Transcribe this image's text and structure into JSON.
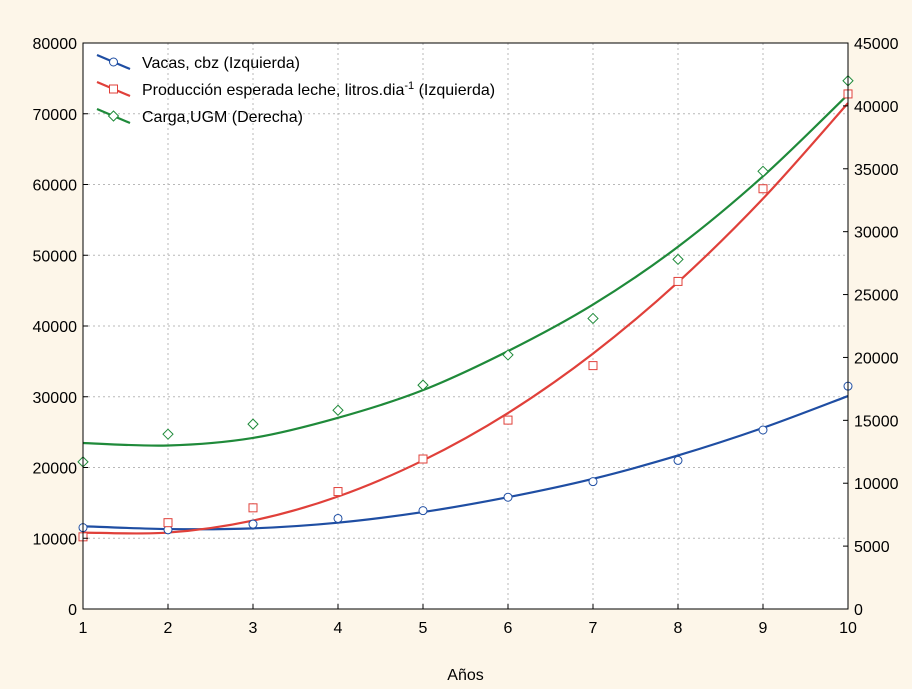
{
  "chart_data": {
    "type": "line",
    "xlabel": "Años",
    "x": [
      1,
      2,
      3,
      4,
      5,
      6,
      7,
      8,
      9,
      10
    ],
    "y_left": {
      "min": 0,
      "max": 80000,
      "ticks": [
        0,
        10000,
        20000,
        30000,
        40000,
        50000,
        60000,
        70000,
        80000
      ]
    },
    "y_right": {
      "min": 0,
      "max": 45000,
      "ticks": [
        0,
        5000,
        10000,
        15000,
        20000,
        25000,
        30000,
        35000,
        40000,
        45000
      ]
    },
    "x_ticks": [
      1,
      2,
      3,
      4,
      5,
      6,
      7,
      8,
      9,
      10
    ],
    "grid": true,
    "legend_position": "top-left",
    "series": [
      {
        "name": "Vacas, cbz  (Izquierda)",
        "axis": "left",
        "color": "#1f4ea3",
        "marker": "circle",
        "points": [
          11500,
          11200,
          12000,
          12800,
          13900,
          15800,
          18000,
          21000,
          25300,
          31500
        ],
        "fit": [
          11700,
          11300,
          11400,
          12200,
          13700,
          15800,
          18400,
          21700,
          25600,
          30100
        ]
      },
      {
        "name": "Producción esperada leche, litros.dia",
        "name_sup": "-1",
        "name_suffix": " (Izquierda)",
        "axis": "left",
        "color": "#e0403a",
        "marker": "square",
        "points": [
          10200,
          12200,
          14300,
          16600,
          21200,
          26700,
          34400,
          46300,
          59400,
          72800
        ],
        "fit": [
          10800,
          10800,
          12500,
          15900,
          21000,
          27700,
          36100,
          46200,
          58000,
          71500
        ]
      },
      {
        "name": "Carga,UGM (Derecha)",
        "axis": "right",
        "color": "#1f8a3a",
        "marker": "diamond",
        "points": [
          11700,
          13900,
          14700,
          15800,
          17800,
          20200,
          23100,
          27800,
          34800,
          42000
        ],
        "fit": [
          13200,
          13000,
          13600,
          15200,
          17400,
          20500,
          24200,
          28800,
          34400,
          40900
        ]
      }
    ]
  }
}
